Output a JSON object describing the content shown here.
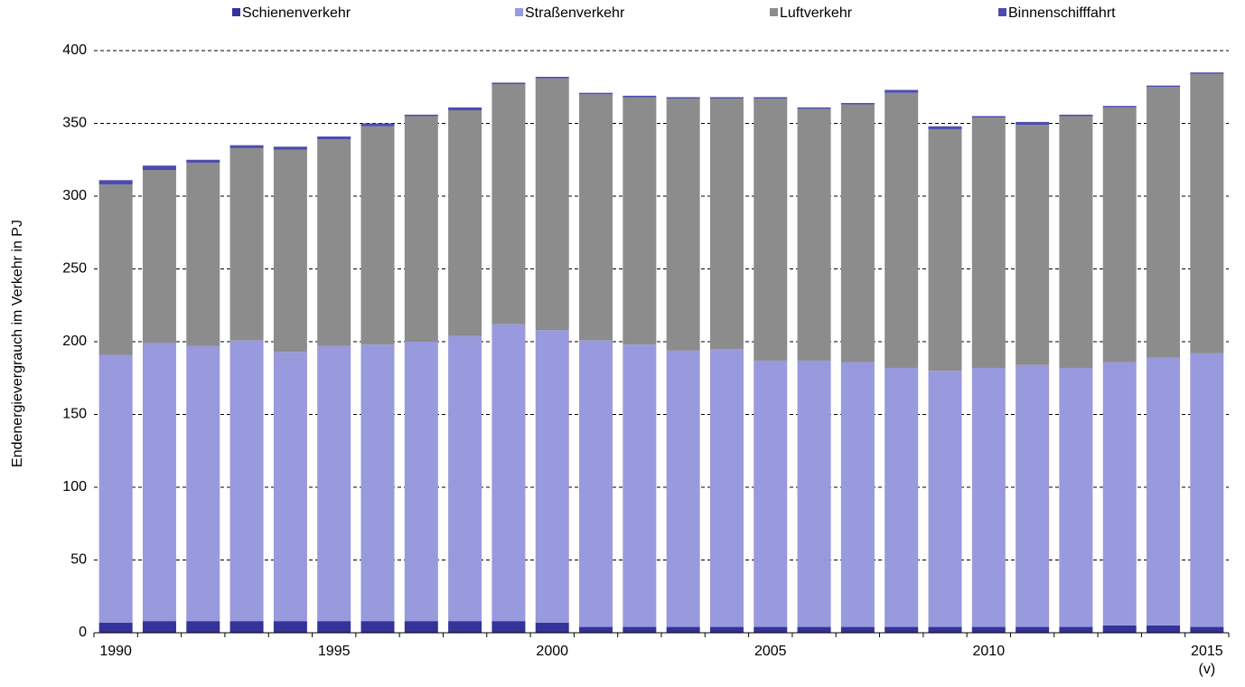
{
  "chart_data": {
    "type": "stacked_bar",
    "y_label": "Endenergievergrauch im Verkehr in PJ",
    "categories": [
      "1990",
      null,
      null,
      null,
      null,
      "1995",
      null,
      null,
      null,
      null,
      "2000",
      null,
      null,
      null,
      null,
      "2005",
      null,
      null,
      null,
      null,
      "2010",
      null,
      null,
      null,
      null,
      "2015\n(v)"
    ],
    "series": [
      {
        "name": "Schienenverkehr",
        "color": "#333399",
        "values": [
          7,
          8,
          8,
          8,
          8,
          8,
          8,
          8,
          8,
          8,
          7,
          4,
          4,
          4,
          4,
          4,
          4,
          4,
          4,
          4,
          4,
          4,
          4,
          5,
          5,
          4
        ]
      },
      {
        "name": "Straßenverkehr",
        "color": "#9999dd",
        "values": [
          184,
          191,
          189,
          193,
          185,
          189,
          190,
          192,
          196,
          204,
          201,
          197,
          194,
          190,
          191,
          183,
          183,
          182,
          178,
          176,
          178,
          180,
          178,
          181,
          184,
          188
        ]
      },
      {
        "name": "Luftverkehr",
        "color": "#8c8c8c",
        "values": [
          117,
          119,
          126,
          132,
          139,
          142,
          150,
          155,
          155,
          165,
          173,
          169,
          170,
          173,
          172,
          180,
          173,
          177,
          189,
          166,
          172,
          165,
          173,
          175,
          186,
          192
        ]
      },
      {
        "name": "Binnenschifffahrt",
        "color": "#4c4cb0",
        "values": [
          3,
          3,
          2,
          2,
          2,
          2,
          2,
          1,
          2,
          1,
          1,
          1,
          1,
          1,
          1,
          1,
          1,
          1,
          2,
          2,
          1,
          2,
          1,
          1,
          1,
          1
        ]
      }
    ],
    "ylim": [
      0,
      400
    ],
    "yticks": [
      0,
      50,
      100,
      150,
      200,
      250,
      300,
      350,
      400
    ],
    "grid": true
  }
}
